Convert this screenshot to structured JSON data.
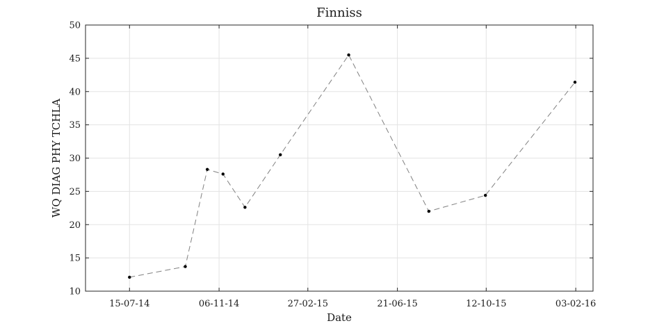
{
  "chart_data": {
    "type": "line",
    "title": "Finniss",
    "xlabel": "Date",
    "ylabel": "WQ DIAG PHY TCHLA",
    "x_ticks": [
      "15-07-14",
      "06-11-14",
      "27-02-15",
      "21-06-15",
      "12-10-15",
      "03-02-16"
    ],
    "xlim": [
      "2014-05-20",
      "2016-02-25"
    ],
    "ylim": [
      10,
      50
    ],
    "y_ticks": [
      10,
      15,
      20,
      25,
      30,
      35,
      40,
      45,
      50
    ],
    "grid": true,
    "series": [
      {
        "color": "#808080",
        "line_style": "dashed",
        "marker_color": "#000000",
        "points": [
          {
            "x": "2014-07-15",
            "y": 12.1
          },
          {
            "x": "2014-09-24",
            "y": 13.7
          },
          {
            "x": "2014-10-22",
            "y": 28.3
          },
          {
            "x": "2014-11-11",
            "y": 27.6
          },
          {
            "x": "2014-12-09",
            "y": 22.6
          },
          {
            "x": "2015-01-23",
            "y": 30.5
          },
          {
            "x": "2015-04-20",
            "y": 45.5
          },
          {
            "x": "2015-07-31",
            "y": 22.0
          },
          {
            "x": "2015-10-11",
            "y": 24.4
          },
          {
            "x": "2016-02-02",
            "y": 41.4
          }
        ]
      }
    ]
  }
}
